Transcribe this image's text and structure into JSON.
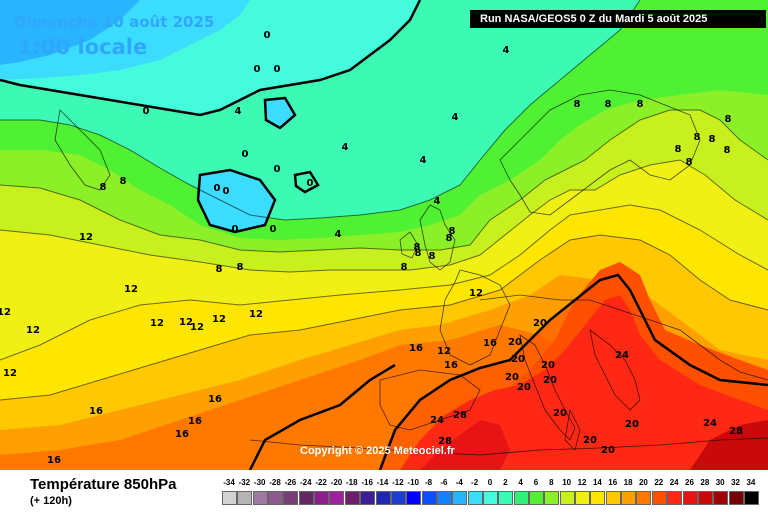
{
  "header": {
    "date": "Dimanche 10 août 2025",
    "time": "1:00 locale",
    "run": "Run NASA/GEOS5 0 Z du Mardi 5 août 2025"
  },
  "copyright": "Copyright © 2025 Meteociel.fr",
  "legend": {
    "title": "Température 850hPa",
    "subtitle": "(+ 120h)",
    "scale": [
      {
        "value": "-34",
        "color": "#d2d2d2"
      },
      {
        "value": "-32",
        "color": "#b4b4b4"
      },
      {
        "value": "-30",
        "color": "#a07aa0"
      },
      {
        "value": "-28",
        "color": "#8c5a8c"
      },
      {
        "value": "-26",
        "color": "#783c78"
      },
      {
        "value": "-24",
        "color": "#642864"
      },
      {
        "value": "-22",
        "color": "#8c1e8c"
      },
      {
        "value": "-20",
        "color": "#a01ea0"
      },
      {
        "value": "-18",
        "color": "#6e1e6e"
      },
      {
        "value": "-16",
        "color": "#3c1e96"
      },
      {
        "value": "-14",
        "color": "#1e28b4"
      },
      {
        "value": "-12",
        "color": "#1e3cd2"
      },
      {
        "value": "-10",
        "color": "#0000ff"
      },
      {
        "value": "-8",
        "color": "#0a50ff"
      },
      {
        "value": "-6",
        "color": "#1482ff"
      },
      {
        "value": "-4",
        "color": "#28b4ff"
      },
      {
        "value": "-2",
        "color": "#3cdcff"
      },
      {
        "value": "0",
        "color": "#46fadc"
      },
      {
        "value": "2",
        "color": "#3cfab4"
      },
      {
        "value": "4",
        "color": "#32f078"
      },
      {
        "value": "6",
        "color": "#50f032"
      },
      {
        "value": "8",
        "color": "#8cf028"
      },
      {
        "value": "10",
        "color": "#c8f01e"
      },
      {
        "value": "12",
        "color": "#f0f014"
      },
      {
        "value": "14",
        "color": "#ffe600"
      },
      {
        "value": "16",
        "color": "#ffc800"
      },
      {
        "value": "18",
        "color": "#ffa000"
      },
      {
        "value": "20",
        "color": "#ff7800"
      },
      {
        "value": "22",
        "color": "#ff5000"
      },
      {
        "value": "24",
        "color": "#ff2814"
      },
      {
        "value": "26",
        "color": "#e61414"
      },
      {
        "value": "28",
        "color": "#c80a0a"
      },
      {
        "value": "30",
        "color": "#a00000"
      },
      {
        "value": "32",
        "color": "#780000"
      },
      {
        "value": "34",
        "color": "#000000"
      }
    ]
  },
  "map_labels": [
    "0",
    "0",
    "0",
    "0",
    "0",
    "0",
    "0",
    "0",
    "0",
    "0",
    "0",
    "4",
    "4",
    "4",
    "4",
    "4",
    "4",
    "4",
    "8",
    "8",
    "8",
    "8",
    "8",
    "8",
    "8",
    "8",
    "8",
    "8",
    "8",
    "8",
    "8",
    "8",
    "8",
    "8",
    "8",
    "8",
    "8",
    "12",
    "12",
    "12",
    "12",
    "12",
    "12",
    "12",
    "12",
    "12",
    "12",
    "12",
    "12",
    "16",
    "16",
    "16",
    "16",
    "16",
    "16",
    "16",
    "16",
    "20",
    "20",
    "20",
    "20",
    "20",
    "20",
    "20",
    "20",
    "20",
    "20",
    "20",
    "24",
    "24",
    "24",
    "28",
    "28",
    "28"
  ]
}
